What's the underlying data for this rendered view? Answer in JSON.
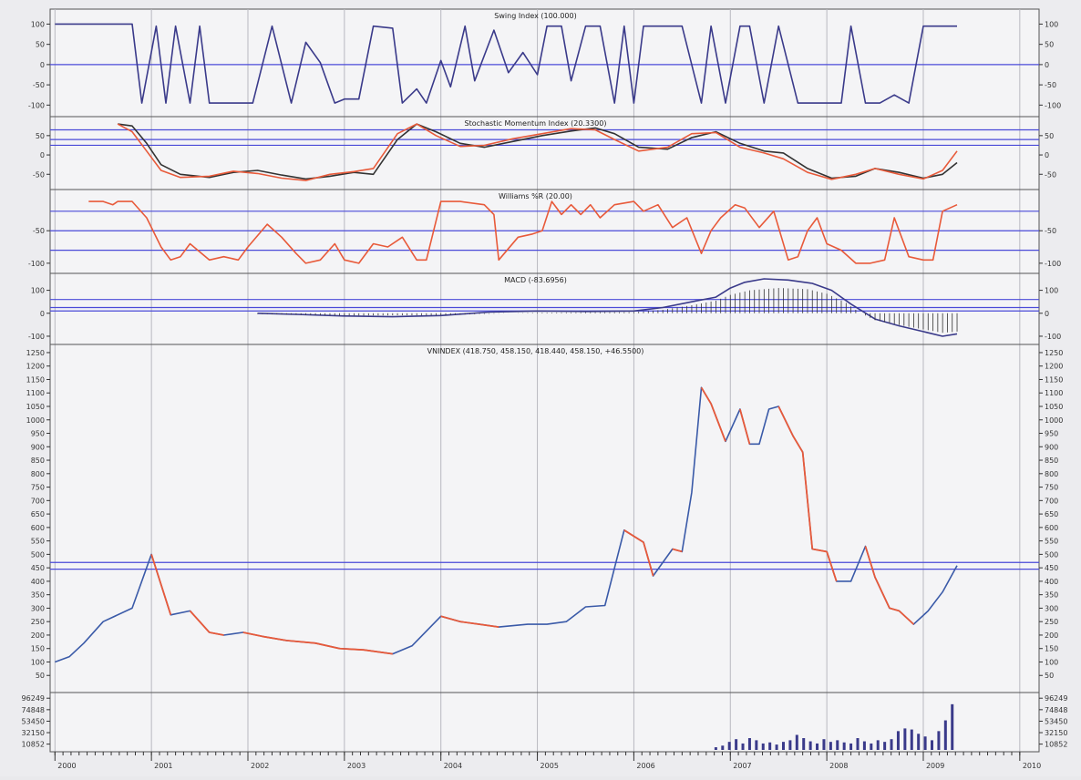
{
  "chart_data": [
    {
      "type": "line",
      "title": "Swing Index (100.000)",
      "ylim": [
        -115,
        110
      ],
      "y_ticks": [
        "100",
        "50",
        "0",
        "-50",
        "-100"
      ],
      "y_tick_values": [
        100,
        50,
        0,
        -50,
        -100
      ],
      "reference_lines": [
        0
      ],
      "series": [
        {
          "color": "#3a3a8a",
          "x": [
            2000.0,
            2000.8,
            2000.9,
            2001.05,
            2001.15,
            2001.25,
            2001.4,
            2001.5,
            2001.6,
            2001.75,
            2001.95,
            2002.05,
            2002.25,
            2002.45,
            2002.6,
            2002.75,
            2002.9,
            2003.0,
            2003.15,
            2003.3,
            2003.5,
            2003.6,
            2003.75,
            2003.85,
            2004.0,
            2004.1,
            2004.25,
            2004.35,
            2004.55,
            2004.7,
            2004.85,
            2005.0,
            2005.1,
            2005.25,
            2005.35,
            2005.5,
            2005.65,
            2005.8,
            2005.9,
            2006.0,
            2006.1,
            2006.25,
            2006.5,
            2006.7,
            2006.8,
            2006.95,
            2007.1,
            2007.2,
            2007.35,
            2007.5,
            2007.7,
            2007.8,
            2007.95,
            2008.15,
            2008.25,
            2008.4,
            2008.55,
            2008.7,
            2008.85,
            2009.0,
            2009.1,
            2009.35
          ],
          "y": [
            100,
            100,
            -95,
            95,
            -95,
            95,
            -95,
            95,
            -95,
            -95,
            -95,
            -95,
            95,
            -95,
            55,
            5,
            -95,
            -85,
            -85,
            95,
            90,
            -95,
            -60,
            -95,
            10,
            -55,
            95,
            -40,
            85,
            -20,
            30,
            -25,
            95,
            95,
            -40,
            95,
            95,
            -95,
            95,
            -95,
            95,
            95,
            95,
            -95,
            95,
            -95,
            95,
            95,
            -95,
            95,
            -95,
            -95,
            -95,
            -95,
            95,
            -95,
            -95,
            -75,
            -95,
            95,
            95,
            95
          ]
        }
      ]
    },
    {
      "type": "line",
      "title": "Stochastic Momentum Index (20.3300)",
      "ylim": [
        -80,
        85
      ],
      "y_ticks": [
        "50",
        "0",
        "-50"
      ],
      "y_tick_values": [
        50,
        0,
        -50
      ],
      "reference_lines": [
        65,
        40,
        25
      ],
      "series": [
        {
          "color": "#333333",
          "x": [
            2000.65,
            2000.8,
            2000.95,
            2001.1,
            2001.3,
            2001.6,
            2001.85,
            2002.1,
            2002.35,
            2002.6,
            2002.85,
            2003.1,
            2003.3,
            2003.55,
            2003.75,
            2003.95,
            2004.2,
            2004.45,
            2004.75,
            2005.05,
            2005.35,
            2005.6,
            2005.8,
            2006.05,
            2006.35,
            2006.6,
            2006.85,
            2007.1,
            2007.35,
            2007.55,
            2007.8,
            2008.05,
            2008.3,
            2008.5,
            2008.75,
            2009.0,
            2009.2,
            2009.35
          ],
          "y": [
            80,
            75,
            30,
            -25,
            -50,
            -58,
            -45,
            -40,
            -52,
            -62,
            -55,
            -45,
            -50,
            40,
            80,
            60,
            30,
            20,
            35,
            50,
            62,
            70,
            55,
            20,
            15,
            45,
            60,
            30,
            10,
            5,
            -35,
            -60,
            -55,
            -35,
            -45,
            -60,
            -50,
            -20
          ]
        },
        {
          "color": "#e85a3a",
          "x": [
            2000.65,
            2000.8,
            2000.95,
            2001.1,
            2001.3,
            2001.6,
            2001.85,
            2002.1,
            2002.35,
            2002.6,
            2002.85,
            2003.1,
            2003.3,
            2003.55,
            2003.75,
            2003.95,
            2004.2,
            2004.45,
            2004.75,
            2005.05,
            2005.35,
            2005.6,
            2005.8,
            2006.05,
            2006.35,
            2006.6,
            2006.85,
            2007.1,
            2007.35,
            2007.55,
            2007.8,
            2008.05,
            2008.3,
            2008.5,
            2008.75,
            2009.0,
            2009.2,
            2009.35
          ],
          "y": [
            80,
            60,
            10,
            -40,
            -58,
            -55,
            -42,
            -48,
            -60,
            -66,
            -50,
            -43,
            -35,
            55,
            80,
            50,
            22,
            25,
            42,
            55,
            68,
            65,
            40,
            10,
            20,
            55,
            58,
            20,
            5,
            -10,
            -45,
            -63,
            -50,
            -35,
            -50,
            -62,
            -40,
            10
          ]
        }
      ]
    },
    {
      "type": "line",
      "title": "Williams %R (20.00)",
      "ylim": [
        -110,
        5
      ],
      "y_ticks": [
        "-50",
        "-100"
      ],
      "y_tick_values": [
        -50,
        -100
      ],
      "reference_lines": [
        -20,
        -50,
        -80
      ],
      "series": [
        {
          "color": "#e85a3a",
          "x": [
            2000.35,
            2000.5,
            2000.6,
            2000.65,
            2000.8,
            2000.95,
            2001.1,
            2001.2,
            2001.3,
            2001.4,
            2001.6,
            2001.75,
            2001.9,
            2002.0,
            2002.2,
            2002.35,
            2002.5,
            2002.6,
            2002.75,
            2002.9,
            2003.0,
            2003.15,
            2003.3,
            2003.45,
            2003.6,
            2003.75,
            2003.85,
            2004.0,
            2004.2,
            2004.45,
            2004.55,
            2004.6,
            2004.8,
            2004.95,
            2005.05,
            2005.15,
            2005.25,
            2005.35,
            2005.45,
            2005.55,
            2005.65,
            2005.8,
            2006.0,
            2006.1,
            2006.25,
            2006.4,
            2006.55,
            2006.7,
            2006.8,
            2006.9,
            2007.05,
            2007.15,
            2007.3,
            2007.45,
            2007.6,
            2007.7,
            2007.8,
            2007.9,
            2008.0,
            2008.15,
            2008.3,
            2008.45,
            2008.6,
            2008.7,
            2008.85,
            2009.0,
            2009.1,
            2009.2,
            2009.35
          ],
          "y": [
            -5,
            -5,
            -10,
            -5,
            -5,
            -30,
            -75,
            -95,
            -90,
            -70,
            -95,
            -90,
            -95,
            -75,
            -40,
            -60,
            -85,
            -100,
            -95,
            -70,
            -95,
            -100,
            -70,
            -75,
            -60,
            -95,
            -95,
            -5,
            -5,
            -10,
            -25,
            -95,
            -60,
            -55,
            -50,
            -5,
            -25,
            -10,
            -25,
            -10,
            -30,
            -10,
            -5,
            -20,
            -10,
            -45,
            -30,
            -85,
            -50,
            -30,
            -10,
            -15,
            -45,
            -20,
            -95,
            -90,
            -50,
            -30,
            -70,
            -80,
            -100,
            -100,
            -95,
            -30,
            -90,
            -95,
            -95,
            -20,
            -10
          ]
        }
      ]
    },
    {
      "type": "line",
      "title": "MACD (-83.6956)",
      "ylim": [
        -120,
        150
      ],
      "y_ticks": [
        "100",
        "0",
        "-100"
      ],
      "y_tick_values": [
        100,
        0,
        -100
      ],
      "reference_lines": [
        60,
        25,
        10
      ],
      "series": [
        {
          "color": "#3a3a8a",
          "x": [
            2002.1,
            2002.5,
            2003.0,
            2003.5,
            2004.0,
            2004.5,
            2005.0,
            2005.5,
            2006.0,
            2006.3,
            2006.6,
            2006.85,
            2007.0,
            2007.15,
            2007.35,
            2007.6,
            2007.85,
            2008.05,
            2008.25,
            2008.5,
            2008.75,
            2009.0,
            2009.2,
            2009.35
          ],
          "y": [
            0,
            -5,
            -12,
            -15,
            -10,
            5,
            10,
            8,
            10,
            25,
            50,
            70,
            110,
            135,
            150,
            145,
            130,
            100,
            40,
            -25,
            -55,
            -80,
            -100,
            -90
          ]
        }
      ],
      "histogram": {
        "x_start": 2002.1,
        "x_end": 2009.35,
        "step": 0.05,
        "x": [
          2002.1,
          2003.0,
          2004.0,
          2005.0,
          2006.0,
          2006.3,
          2006.6,
          2006.85,
          2007.0,
          2007.2,
          2007.5,
          2007.8,
          2008.0,
          2008.2,
          2008.35,
          2008.5,
          2008.8,
          2009.0,
          2009.2,
          2009.35
        ],
        "y": [
          -3,
          -10,
          -8,
          3,
          5,
          15,
          35,
          55,
          80,
          100,
          110,
          105,
          85,
          45,
          0,
          -30,
          -55,
          -70,
          -85,
          -80
        ]
      }
    },
    {
      "type": "line",
      "title": "VNINDEX (418.750, 458.150, 418.440, 458.150, +46.5500)",
      "ylim": [
        0,
        1260
      ],
      "y_ticks": [
        "1250",
        "1200",
        "1150",
        "1100",
        "1050",
        "1000",
        "950",
        "900",
        "850",
        "800",
        "750",
        "700",
        "650",
        "600",
        "550",
        "500",
        "450",
        "400",
        "350",
        "300",
        "250",
        "200",
        "150",
        "100",
        "50"
      ],
      "y_tick_values": [
        1250,
        1200,
        1150,
        1100,
        1050,
        1000,
        950,
        900,
        850,
        800,
        750,
        700,
        650,
        600,
        550,
        500,
        450,
        400,
        350,
        300,
        250,
        200,
        150,
        100,
        50
      ],
      "reference_lines": [
        470,
        445
      ],
      "series": [
        {
          "color": "#3a5aa8",
          "x": [
            2000.0,
            2000.15,
            2000.3,
            2000.5,
            2000.8,
            2001.0,
            2001.2,
            2001.4,
            2001.6,
            2001.75,
            2001.95,
            2002.15,
            2002.4,
            2002.7,
            2002.95,
            2003.2,
            2003.5,
            2003.7,
            2004.0,
            2004.2,
            2004.4,
            2004.6,
            2004.9,
            2005.1,
            2005.3,
            2005.5,
            2005.7,
            2005.9,
            2006.1,
            2006.2,
            2006.4,
            2006.5,
            2006.6,
            2006.7,
            2006.8,
            2006.95,
            2007.1,
            2007.2,
            2007.3,
            2007.4,
            2007.5,
            2007.65,
            2007.75,
            2007.85,
            2008.0,
            2008.1,
            2008.25,
            2008.4,
            2008.5,
            2008.65,
            2008.75,
            2008.9,
            2009.05,
            2009.2,
            2009.35
          ],
          "y": [
            100,
            120,
            170,
            250,
            300,
            500,
            275,
            290,
            210,
            200,
            210,
            195,
            180,
            170,
            150,
            145,
            130,
            160,
            270,
            250,
            240,
            230,
            240,
            240,
            250,
            305,
            310,
            590,
            545,
            420,
            520,
            510,
            730,
            1120,
            1060,
            920,
            1040,
            910,
            910,
            1040,
            1050,
            940,
            880,
            520,
            510,
            400,
            400,
            530,
            415,
            300,
            290,
            240,
            290,
            360,
            458
          ]
        }
      ]
    },
    {
      "type": "bar",
      "title": "",
      "ylim": [
        0,
        100000
      ],
      "y_ticks": [
        "96249",
        "74848",
        "53450",
        "32150",
        "10852"
      ],
      "y_tick_values": [
        96249,
        74848,
        53450,
        32150,
        10852
      ],
      "x": [
        2006.85,
        2006.92,
        2006.99,
        2007.06,
        2007.13,
        2007.2,
        2007.27,
        2007.34,
        2007.41,
        2007.48,
        2007.55,
        2007.62,
        2007.69,
        2007.76,
        2007.83,
        2007.9,
        2007.97,
        2008.04,
        2008.11,
        2008.18,
        2008.25,
        2008.32,
        2008.39,
        2008.46,
        2008.53,
        2008.6,
        2008.67,
        2008.74,
        2008.81,
        2008.88,
        2008.95,
        2009.02,
        2009.09,
        2009.16,
        2009.23,
        2009.3
      ],
      "values": [
        5000,
        8000,
        15000,
        20000,
        12000,
        22000,
        18000,
        12000,
        14000,
        10000,
        15000,
        18000,
        28000,
        22000,
        16000,
        12000,
        20000,
        15000,
        18000,
        14000,
        12000,
        22000,
        16000,
        12000,
        18000,
        15000,
        20000,
        35000,
        40000,
        38000,
        30000,
        25000,
        18000,
        35000,
        55000,
        85000
      ]
    }
  ],
  "x_axis": {
    "labels": [
      "2000",
      "2001",
      "2002",
      "2003",
      "2004",
      "2005",
      "2006",
      "2007",
      "2008",
      "2009",
      "2010"
    ],
    "range": [
      1999.95,
      2010.2
    ]
  }
}
